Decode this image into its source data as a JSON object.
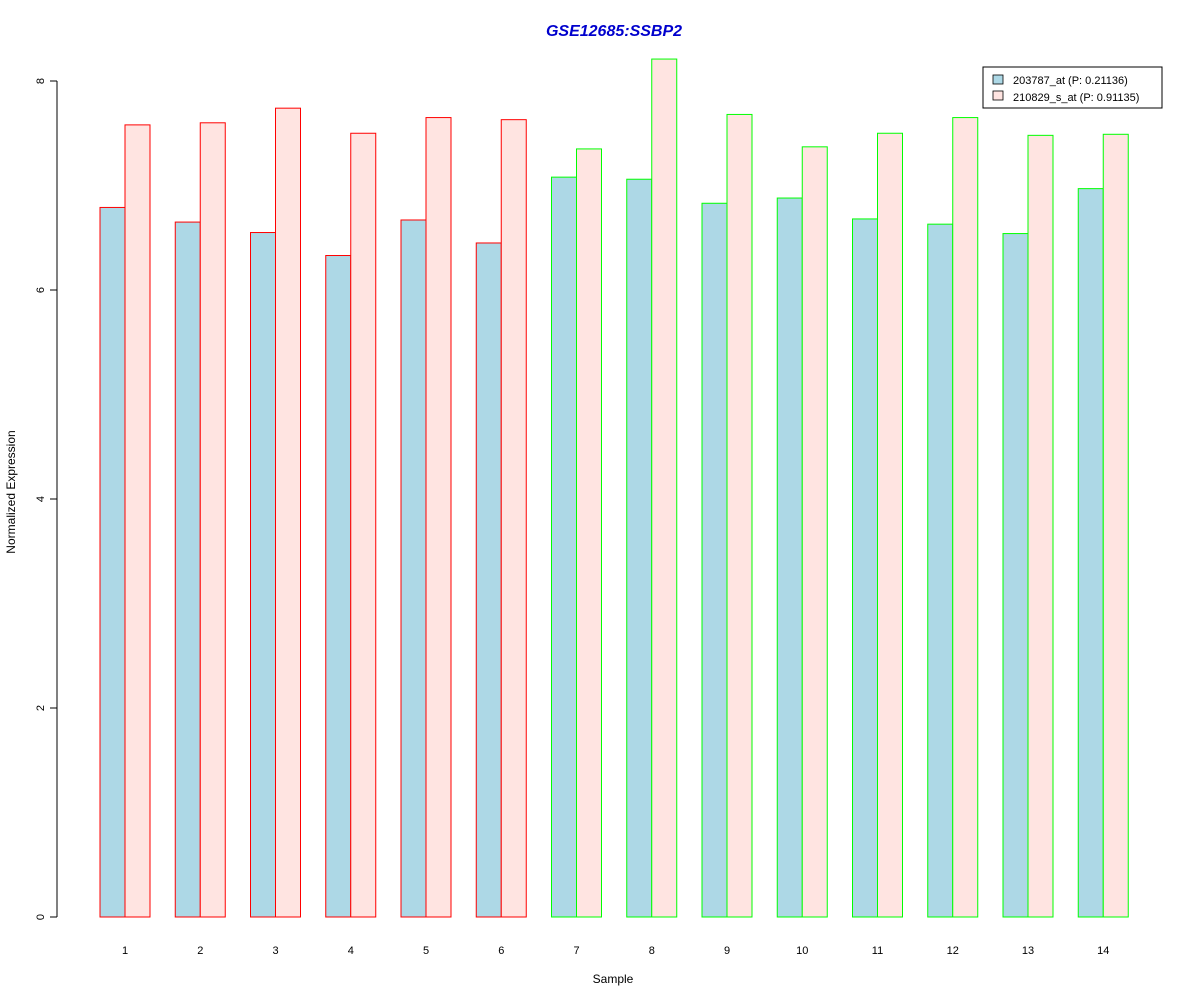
{
  "chart_data": {
    "type": "bar",
    "title": "GSE12685:SSBP2",
    "xlabel": "Sample",
    "ylabel": "Normalized Expression",
    "ylim": [
      0,
      8.2
    ],
    "yticks": [
      "0",
      "2",
      "4",
      "6",
      "8"
    ],
    "categories": [
      "1",
      "2",
      "3",
      "4",
      "5",
      "6",
      "7",
      "8",
      "9",
      "10",
      "11",
      "12",
      "13",
      "14"
    ],
    "series": [
      {
        "name": "203787_at (P: 0.21136)",
        "fill": "#add8e6",
        "values": [
          6.79,
          6.65,
          6.55,
          6.33,
          6.67,
          6.45,
          7.08,
          7.06,
          6.83,
          6.88,
          6.68,
          6.63,
          6.54,
          6.97
        ]
      },
      {
        "name": "210829_s_at (P: 0.91135)",
        "fill": "#ffe4e1",
        "values": [
          7.58,
          7.6,
          7.74,
          7.5,
          7.65,
          7.63,
          7.35,
          8.21,
          7.68,
          7.37,
          7.5,
          7.65,
          7.48,
          7.49
        ]
      }
    ],
    "group_border_colors": [
      "#ff0000",
      "#ff0000",
      "#ff0000",
      "#ff0000",
      "#ff0000",
      "#ff0000",
      "#00ff00",
      "#00ff00",
      "#00ff00",
      "#00ff00",
      "#00ff00",
      "#00ff00",
      "#00ff00",
      "#00ff00"
    ],
    "title_color": "#0000cd",
    "legend_position": "top-right",
    "grid": false
  }
}
